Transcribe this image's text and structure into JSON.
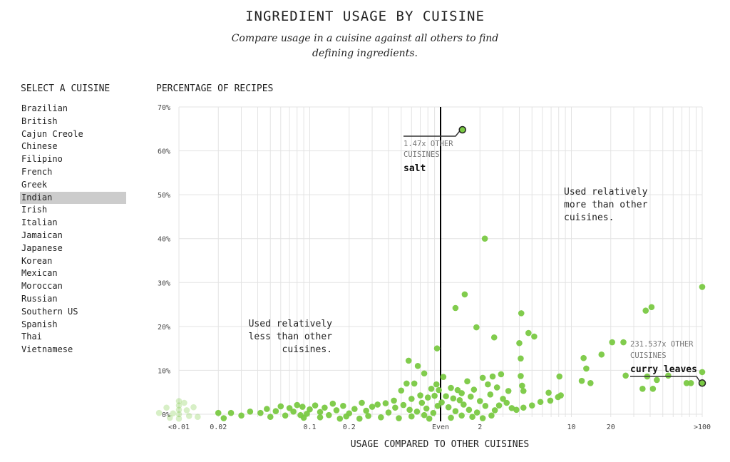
{
  "title": "INGREDIENT USAGE BY CUISINE",
  "subtitle": "Compare usage in a cuisine against all others to find defining ingredients.",
  "sidebar": {
    "title": "SELECT A CUISINE",
    "selected": "Indian",
    "items": [
      "Brazilian",
      "British",
      "Cajun Creole",
      "Chinese",
      "Filipino",
      "French",
      "Greek",
      "Indian",
      "Irish",
      "Italian",
      "Jamaican",
      "Japanese",
      "Korean",
      "Mexican",
      "Moroccan",
      "Russian",
      "Southern US",
      "Spanish",
      "Thai",
      "Vietnamese"
    ]
  },
  "chart_data": {
    "type": "scatter",
    "ylabel": "PERCENTAGE OF RECIPES",
    "xlabel": "USAGE COMPARED TO OTHER CUISINES",
    "x_scale": "log",
    "xlim": [
      0.01,
      100
    ],
    "ylim": [
      0,
      70
    ],
    "x_ticks": [
      {
        "v": 0.01,
        "label": "<0.01"
      },
      {
        "v": 0.02,
        "label": "0.02"
      },
      {
        "v": 0.1,
        "label": "0.1"
      },
      {
        "v": 0.2,
        "label": "0.2"
      },
      {
        "v": 1,
        "label": "Even"
      },
      {
        "v": 2,
        "label": "2"
      },
      {
        "v": 10,
        "label": "10"
      },
      {
        "v": 20,
        "label": "20"
      },
      {
        "v": 100,
        "label": ">100"
      }
    ],
    "y_ticks": [
      {
        "v": 0,
        "label": "0%"
      },
      {
        "v": 10,
        "label": "10%"
      },
      {
        "v": 20,
        "label": "20%"
      },
      {
        "v": 30,
        "label": "30%"
      },
      {
        "v": 40,
        "label": "40%"
      },
      {
        "v": 50,
        "label": "50%"
      },
      {
        "v": 60,
        "label": "60%"
      },
      {
        "v": 70,
        "label": "70%"
      }
    ],
    "grid": true,
    "point_color": "#7ac943",
    "reference_line": {
      "x": 1
    },
    "annotations": {
      "more": [
        "Used relatively",
        "more than other",
        "cuisines."
      ],
      "less": [
        "Used relatively",
        "less than other",
        "cuisines."
      ]
    },
    "highlights": [
      {
        "name": "salt",
        "ratio_label": "1.47x OTHER",
        "ratio_label2": "CUISINES",
        "x": 1.47,
        "y": 64.8
      },
      {
        "name": "curry leaves",
        "ratio_label": "231.537x OTHER",
        "ratio_label2": "CUISINES",
        "x": 231.537,
        "y": 7.1
      }
    ],
    "points": [
      [
        2.18,
        40
      ],
      [
        100,
        29
      ],
      [
        1.53,
        27.3
      ],
      [
        1.3,
        24.2
      ],
      [
        1.88,
        19.8
      ],
      [
        4.14,
        23
      ],
      [
        2.57,
        17.5
      ],
      [
        4.7,
        18.5
      ],
      [
        5.2,
        17.7
      ],
      [
        4.0,
        16.2
      ],
      [
        4.1,
        12.7
      ],
      [
        0.94,
        15
      ],
      [
        0.57,
        12.2
      ],
      [
        0.67,
        11
      ],
      [
        0.75,
        9.3
      ],
      [
        37,
        23.6
      ],
      [
        41,
        24.4
      ],
      [
        20.5,
        16.4
      ],
      [
        25,
        16.4
      ],
      [
        17,
        13.6
      ],
      [
        12.4,
        12.8
      ],
      [
        13,
        10.4
      ],
      [
        14,
        7.1
      ],
      [
        12,
        7.6
      ],
      [
        8.1,
        8.6
      ],
      [
        6.7,
        4.9
      ],
      [
        76,
        7.1
      ],
      [
        82,
        7.1
      ],
      [
        100,
        9.6
      ],
      [
        55,
        8.8
      ],
      [
        26,
        8.8
      ],
      [
        38,
        8.6
      ],
      [
        35,
        5.8
      ],
      [
        42,
        5.8
      ],
      [
        45,
        7.8
      ],
      [
        1.05,
        8.5
      ],
      [
        1.6,
        7.5
      ],
      [
        2.1,
        8.3
      ],
      [
        2.5,
        8.6
      ],
      [
        2.9,
        9.1
      ],
      [
        3.3,
        5.3
      ],
      [
        4.1,
        8.7
      ],
      [
        4.2,
        6.5
      ],
      [
        4.3,
        5.3
      ],
      [
        3.8,
        1.0
      ],
      [
        4.3,
        1.5
      ],
      [
        5.0,
        2.0
      ],
      [
        5.8,
        2.8
      ],
      [
        6.9,
        3.1
      ],
      [
        7.9,
        3.9
      ],
      [
        8.3,
        4.3
      ],
      [
        1.8,
        5.6
      ],
      [
        2.3,
        6.8
      ],
      [
        2.7,
        6.1
      ],
      [
        3.0,
        3.5
      ],
      [
        1.2,
        6.0
      ],
      [
        1.35,
        5.5
      ],
      [
        1.45,
        4.8
      ],
      [
        0.55,
        7
      ],
      [
        0.63,
        7
      ],
      [
        0.85,
        5.8
      ],
      [
        0.93,
        6.8
      ],
      [
        0.97,
        5.5
      ],
      [
        0.5,
        5.4
      ],
      [
        0.6,
        3.5
      ],
      [
        0.7,
        4.3
      ],
      [
        0.8,
        3.8
      ],
      [
        0.9,
        4.2
      ],
      [
        1.1,
        4.1
      ],
      [
        1.25,
        3.6
      ],
      [
        1.4,
        3.2
      ],
      [
        1.7,
        4.0
      ],
      [
        2.0,
        3.0
      ],
      [
        2.4,
        4.5
      ],
      [
        2.8,
        2.0
      ],
      [
        3.2,
        2.6
      ],
      [
        0.44,
        3.1
      ],
      [
        0.38,
        2.5
      ],
      [
        0.33,
        2.2
      ],
      [
        0.3,
        1.7
      ],
      [
        0.45,
        1.5
      ],
      [
        0.52,
        2.1
      ],
      [
        0.58,
        1.0
      ],
      [
        0.66,
        0.6
      ],
      [
        0.72,
        2.6
      ],
      [
        0.78,
        1.3
      ],
      [
        0.88,
        0.3
      ],
      [
        0.95,
        1.9
      ],
      [
        1.02,
        2.7
      ],
      [
        1.15,
        1.6
      ],
      [
        1.3,
        0.7
      ],
      [
        1.5,
        2.2
      ],
      [
        1.65,
        1.0
      ],
      [
        1.9,
        0.4
      ],
      [
        2.2,
        1.9
      ],
      [
        2.6,
        0.9
      ],
      [
        3.5,
        1.4
      ],
      [
        0.25,
        2.6
      ],
      [
        0.22,
        1.2
      ],
      [
        0.2,
        0.2
      ],
      [
        0.18,
        1.9
      ],
      [
        0.16,
        0.9
      ],
      [
        0.15,
        2.4
      ],
      [
        0.13,
        1.5
      ],
      [
        0.12,
        0.5
      ],
      [
        0.11,
        2.0
      ],
      [
        0.1,
        1.1
      ],
      [
        0.095,
        0.1
      ],
      [
        0.088,
        1.7
      ],
      [
        0.08,
        2.1
      ],
      [
        0.075,
        0.6
      ],
      [
        0.07,
        1.4
      ],
      [
        0.065,
        -0.3
      ],
      [
        0.06,
        1.8
      ],
      [
        0.055,
        0.7
      ],
      [
        0.05,
        -0.6
      ],
      [
        0.047,
        1.2
      ],
      [
        0.042,
        0.3
      ],
      [
        0.035,
        0.6
      ],
      [
        0.03,
        -0.3
      ],
      [
        0.025,
        0.3
      ],
      [
        0.02,
        0.3
      ],
      [
        0.022,
        -0.9
      ],
      [
        0.28,
        -0.4
      ],
      [
        0.35,
        -0.7
      ],
      [
        0.4,
        0.4
      ],
      [
        0.48,
        -0.9
      ],
      [
        0.27,
        0.8
      ],
      [
        0.24,
        -1.0
      ],
      [
        0.19,
        -0.5
      ],
      [
        0.14,
        -0.2
      ],
      [
        0.17,
        -1.0
      ],
      [
        0.12,
        -0.7
      ],
      [
        0.09,
        -0.8
      ],
      [
        0.085,
        -0.2
      ],
      [
        0.6,
        -0.5
      ],
      [
        0.75,
        -0.2
      ],
      [
        0.82,
        -1.0
      ],
      [
        1.2,
        -0.8
      ],
      [
        1.45,
        -0.3
      ],
      [
        1.75,
        -0.6
      ],
      [
        2.1,
        -0.9
      ],
      [
        2.45,
        -0.3
      ],
      [
        0.01,
        3
      ],
      [
        0.01,
        2
      ],
      [
        0.01,
        1
      ],
      [
        0.01,
        0
      ],
      [
        0.01,
        -1
      ],
      [
        0.009,
        0.2
      ],
      [
        0.008,
        1.5
      ],
      [
        0.011,
        2.6
      ],
      [
        0.012,
        -0.4
      ],
      [
        0.0085,
        -0.8
      ],
      [
        0.0115,
        0.9
      ],
      [
        0.013,
        1.6
      ],
      [
        0.007,
        0.3
      ],
      [
        0.014,
        -0.6
      ]
    ]
  }
}
